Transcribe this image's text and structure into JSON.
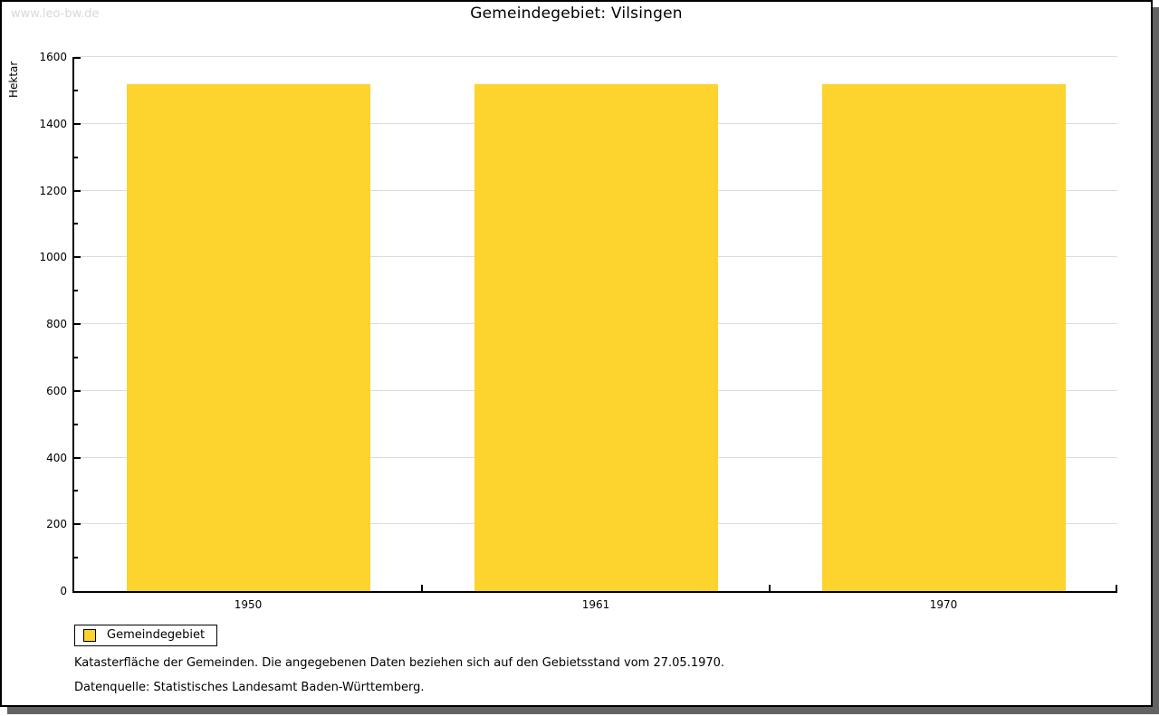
{
  "watermark": "www.leo-bw.de",
  "title": "Gemeindegebiet: Vilsingen",
  "y_axis_title": "Hektar",
  "chart_data": {
    "type": "bar",
    "title": "Gemeindegebiet: Vilsingen",
    "categories": [
      "1950",
      "1961",
      "1970"
    ],
    "series": [
      {
        "name": "Gemeindegebiet",
        "values": [
          1520,
          1520,
          1520
        ],
        "color": "#FDD32E"
      }
    ],
    "xlabel": "",
    "ylabel": "Hektar",
    "ylim": [
      0,
      1600
    ],
    "yticks": [
      0,
      200,
      400,
      600,
      800,
      1000,
      1200,
      1400,
      1600
    ],
    "ytick_minor_step": 100,
    "grid": true,
    "gridline_color": "#dcdcdc",
    "legend_position": "bottom-left"
  },
  "legend": {
    "items": [
      {
        "label": "Gemeindegebiet",
        "color": "#FDD32E"
      }
    ]
  },
  "footnotes": [
    "Katasterfläche der Gemeinden. Die angegebenen Daten beziehen sich auf den Gebietsstand vom 27.05.1970.",
    "Datenquelle: Statistisches Landesamt Baden-Württemberg."
  ]
}
